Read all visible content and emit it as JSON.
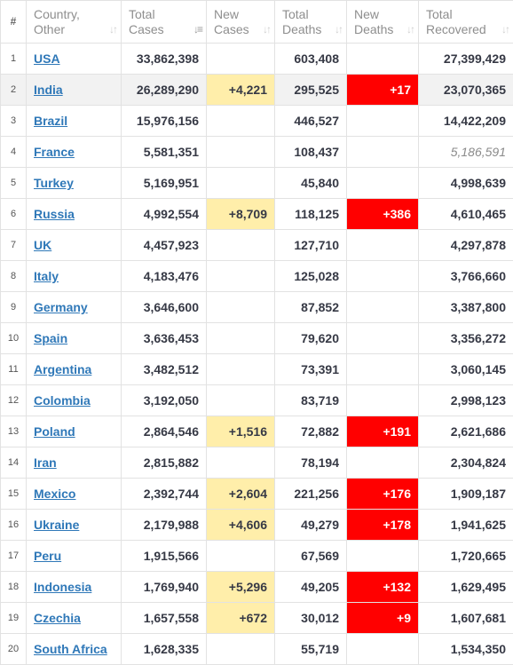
{
  "colors": {
    "new_cases_bg": "#ffeeaa",
    "new_deaths_bg": "#ff0000",
    "link": "#2f78b8",
    "header_text": "#8e8e8e",
    "highlight_row": "#f2f2f2"
  },
  "header": {
    "num": "#",
    "country": [
      "Country,",
      "Other"
    ],
    "total_cases": [
      "Total",
      "Cases"
    ],
    "new_cases": [
      "New",
      "Cases"
    ],
    "total_deaths": [
      "Total",
      "Deaths"
    ],
    "new_deaths": [
      "New",
      "Deaths"
    ],
    "total_recovered": [
      "Total",
      "Recovered"
    ]
  },
  "rows": [
    {
      "num": "1",
      "country": "USA",
      "total_cases": "33,862,398",
      "new_cases": "",
      "total_deaths": "603,408",
      "new_deaths": "",
      "total_recovered": "27,399,429"
    },
    {
      "num": "2",
      "country": "India",
      "total_cases": "26,289,290",
      "new_cases": "+4,221",
      "total_deaths": "295,525",
      "new_deaths": "+17",
      "total_recovered": "23,070,365"
    },
    {
      "num": "3",
      "country": "Brazil",
      "total_cases": "15,976,156",
      "new_cases": "",
      "total_deaths": "446,527",
      "new_deaths": "",
      "total_recovered": "14,422,209"
    },
    {
      "num": "4",
      "country": "France",
      "total_cases": "5,581,351",
      "new_cases": "",
      "total_deaths": "108,437",
      "new_deaths": "",
      "total_recovered": "5,186,591"
    },
    {
      "num": "5",
      "country": "Turkey",
      "total_cases": "5,169,951",
      "new_cases": "",
      "total_deaths": "45,840",
      "new_deaths": "",
      "total_recovered": "4,998,639"
    },
    {
      "num": "6",
      "country": "Russia",
      "total_cases": "4,992,554",
      "new_cases": "+8,709",
      "total_deaths": "118,125",
      "new_deaths": "+386",
      "total_recovered": "4,610,465"
    },
    {
      "num": "7",
      "country": "UK",
      "total_cases": "4,457,923",
      "new_cases": "",
      "total_deaths": "127,710",
      "new_deaths": "",
      "total_recovered": "4,297,878"
    },
    {
      "num": "8",
      "country": "Italy",
      "total_cases": "4,183,476",
      "new_cases": "",
      "total_deaths": "125,028",
      "new_deaths": "",
      "total_recovered": "3,766,660"
    },
    {
      "num": "9",
      "country": "Germany",
      "total_cases": "3,646,600",
      "new_cases": "",
      "total_deaths": "87,852",
      "new_deaths": "",
      "total_recovered": "3,387,800"
    },
    {
      "num": "10",
      "country": "Spain",
      "total_cases": "3,636,453",
      "new_cases": "",
      "total_deaths": "79,620",
      "new_deaths": "",
      "total_recovered": "3,356,272"
    },
    {
      "num": "11",
      "country": "Argentina",
      "total_cases": "3,482,512",
      "new_cases": "",
      "total_deaths": "73,391",
      "new_deaths": "",
      "total_recovered": "3,060,145"
    },
    {
      "num": "12",
      "country": "Colombia",
      "total_cases": "3,192,050",
      "new_cases": "",
      "total_deaths": "83,719",
      "new_deaths": "",
      "total_recovered": "2,998,123"
    },
    {
      "num": "13",
      "country": "Poland",
      "total_cases": "2,864,546",
      "new_cases": "+1,516",
      "total_deaths": "72,882",
      "new_deaths": "+191",
      "total_recovered": "2,621,686"
    },
    {
      "num": "14",
      "country": "Iran",
      "total_cases": "2,815,882",
      "new_cases": "",
      "total_deaths": "78,194",
      "new_deaths": "",
      "total_recovered": "2,304,824"
    },
    {
      "num": "15",
      "country": "Mexico",
      "total_cases": "2,392,744",
      "new_cases": "+2,604",
      "total_deaths": "221,256",
      "new_deaths": "+176",
      "total_recovered": "1,909,187"
    },
    {
      "num": "16",
      "country": "Ukraine",
      "total_cases": "2,179,988",
      "new_cases": "+4,606",
      "total_deaths": "49,279",
      "new_deaths": "+178",
      "total_recovered": "1,941,625"
    },
    {
      "num": "17",
      "country": "Peru",
      "total_cases": "1,915,566",
      "new_cases": "",
      "total_deaths": "67,569",
      "new_deaths": "",
      "total_recovered": "1,720,665"
    },
    {
      "num": "18",
      "country": "Indonesia",
      "total_cases": "1,769,940",
      "new_cases": "+5,296",
      "total_deaths": "49,205",
      "new_deaths": "+132",
      "total_recovered": "1,629,495"
    },
    {
      "num": "19",
      "country": "Czechia",
      "total_cases": "1,657,558",
      "new_cases": "+672",
      "total_deaths": "30,012",
      "new_deaths": "+9",
      "total_recovered": "1,607,681"
    },
    {
      "num": "20",
      "country": "South Africa",
      "total_cases": "1,628,335",
      "new_cases": "",
      "total_deaths": "55,719",
      "new_deaths": "",
      "total_recovered": "1,534,350"
    }
  ]
}
